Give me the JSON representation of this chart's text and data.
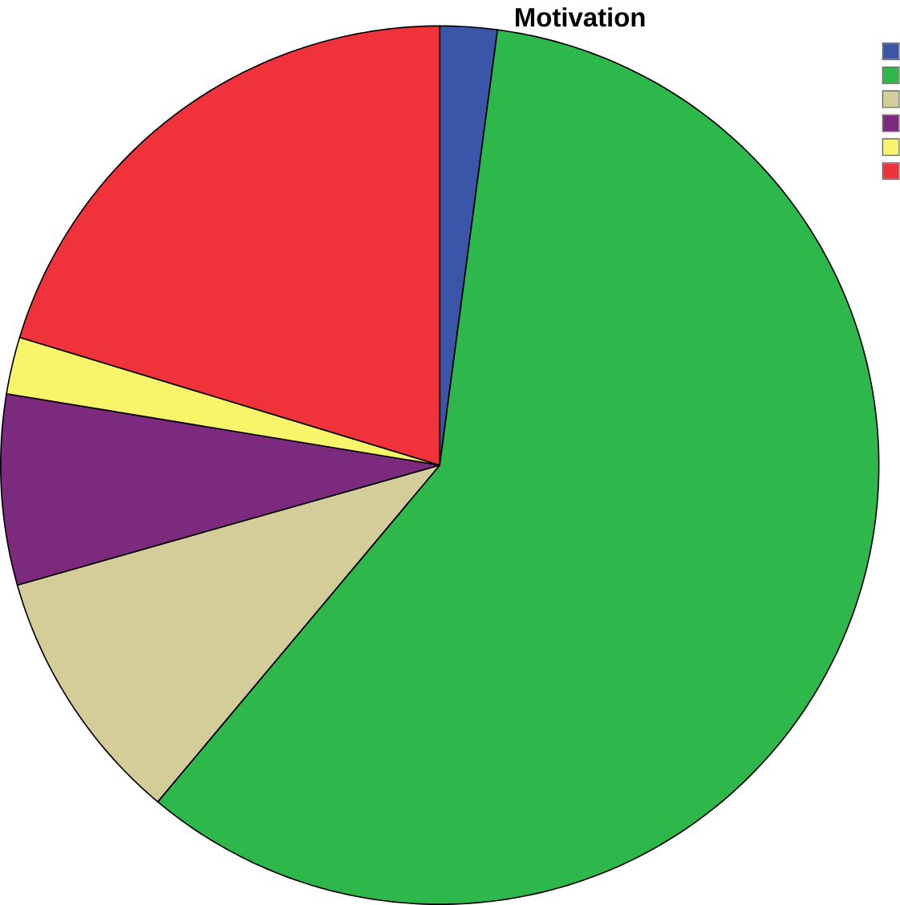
{
  "chart_data": {
    "type": "pie",
    "title": "Motivation",
    "categories": [
      null,
      null,
      null,
      null,
      null,
      null
    ],
    "values": [
      2.1,
      59.0,
      9.5,
      7.0,
      2.1,
      20.3
    ],
    "colors": [
      "#3b55a8",
      "#2eb74a",
      "#d4cd9a",
      "#7b2a7d",
      "#f8f56b",
      "#f0323a"
    ]
  }
}
